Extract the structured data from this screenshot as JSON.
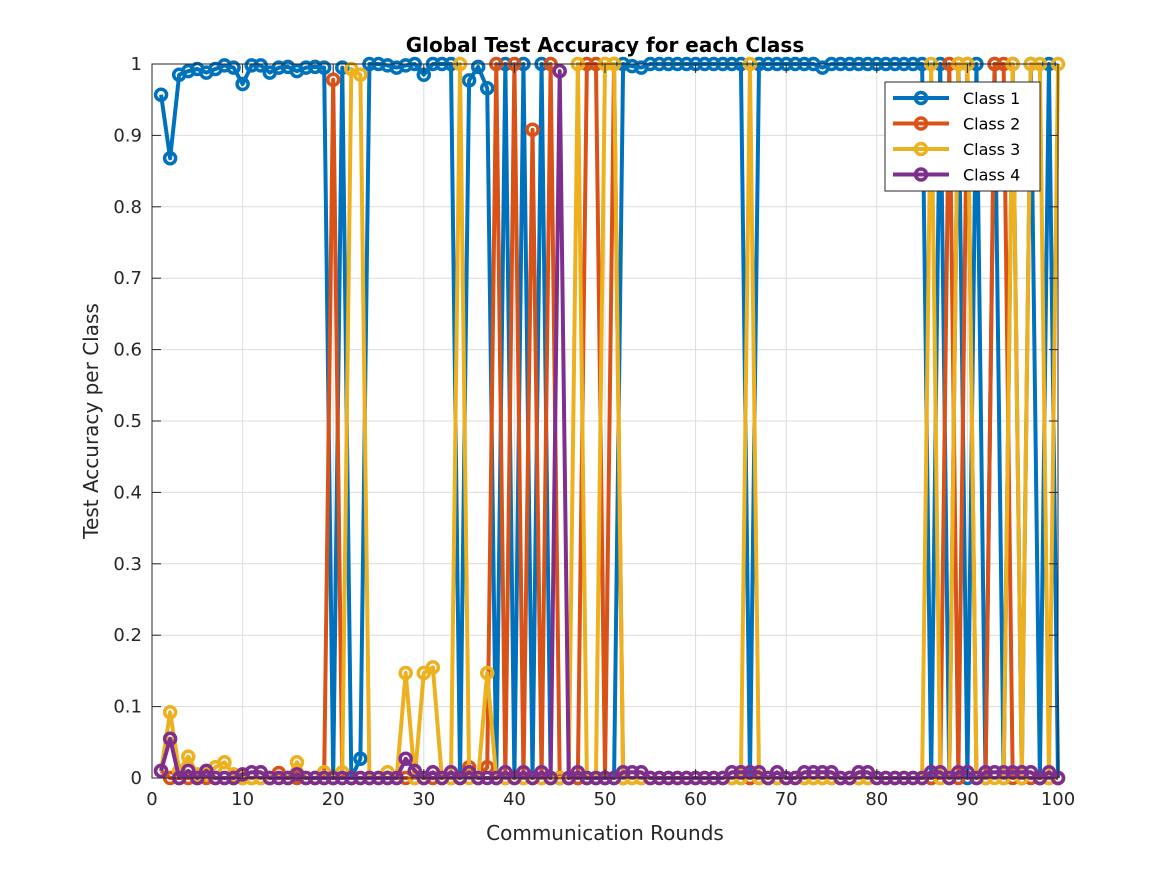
{
  "chart_data": {
    "type": "line",
    "title": "Global Test Accuracy for each Class",
    "xlabel": "Communication Rounds",
    "ylabel": "Test Accuracy per Class",
    "xlim": [
      0,
      100
    ],
    "ylim": [
      0,
      1
    ],
    "xticks": [
      0,
      10,
      20,
      30,
      40,
      50,
      60,
      70,
      80,
      90,
      100
    ],
    "yticks": [
      0,
      0.1,
      0.2,
      0.3,
      0.4,
      0.5,
      0.6,
      0.7,
      0.8,
      0.9,
      1
    ],
    "grid": true,
    "legend_position": "top-right",
    "x": [
      1,
      2,
      3,
      4,
      5,
      6,
      7,
      8,
      9,
      10,
      11,
      12,
      13,
      14,
      15,
      16,
      17,
      18,
      19,
      20,
      21,
      22,
      23,
      24,
      25,
      26,
      27,
      28,
      29,
      30,
      31,
      32,
      33,
      34,
      35,
      36,
      37,
      38,
      39,
      40,
      41,
      42,
      43,
      44,
      45,
      46,
      47,
      48,
      49,
      50,
      51,
      52,
      53,
      54,
      55,
      56,
      57,
      58,
      59,
      60,
      61,
      62,
      63,
      64,
      65,
      66,
      67,
      68,
      69,
      70,
      71,
      72,
      73,
      74,
      75,
      76,
      77,
      78,
      79,
      80,
      81,
      82,
      83,
      84,
      85,
      86,
      87,
      88,
      89,
      90,
      91,
      92,
      93,
      94,
      95,
      96,
      97,
      98,
      99,
      100
    ],
    "series": [
      {
        "name": "Class 1",
        "color": "#0072BD",
        "values": [
          0.957,
          0.868,
          0.985,
          0.99,
          0.993,
          0.988,
          0.993,
          0.998,
          0.995,
          0.972,
          0.998,
          0.998,
          0.988,
          0.995,
          0.996,
          0.99,
          0.995,
          0.996,
          0.995,
          0,
          0.995,
          0,
          0.027,
          1,
          1,
          0.998,
          0.995,
          0.998,
          1,
          0.985,
          1,
          1,
          1,
          0,
          0.977,
          0.996,
          0.966,
          0,
          1,
          0,
          1,
          0,
          1,
          0,
          0,
          0,
          0,
          0,
          0,
          0,
          0,
          1,
          0.997,
          0.995,
          1,
          1,
          1,
          1,
          1,
          1,
          1,
          1,
          1,
          1,
          1,
          0,
          1,
          1,
          1,
          1,
          1,
          1,
          1,
          0.995,
          1,
          1,
          1,
          1,
          1,
          1,
          1,
          1,
          1,
          1,
          1,
          0,
          1,
          0,
          1,
          0,
          1,
          0,
          1,
          0,
          1,
          0,
          1,
          0,
          1,
          0
        ]
      },
      {
        "name": "Class 2",
        "color": "#D95319",
        "values": [
          0.01,
          0,
          0,
          0,
          0,
          0,
          0,
          0,
          0,
          0,
          0,
          0,
          0,
          0.007,
          0,
          0,
          0,
          0,
          0,
          0.978,
          0,
          0,
          0,
          0,
          0,
          0,
          0,
          0,
          0,
          0,
          0,
          0,
          0,
          0,
          0.015,
          0,
          0.015,
          1,
          0,
          1,
          0,
          0.908,
          0,
          1,
          0,
          0,
          0,
          1,
          1,
          0,
          1,
          0,
          0,
          0,
          0,
          0,
          0,
          0,
          0,
          0,
          0,
          0,
          0,
          0,
          0,
          0,
          0,
          0,
          0,
          0,
          0,
          0,
          0,
          0,
          0,
          0,
          0,
          0,
          0,
          0,
          0,
          0,
          0,
          0,
          0,
          0,
          0,
          1,
          0,
          1,
          0,
          0,
          1,
          1,
          0,
          0,
          0,
          0,
          0,
          0
        ]
      },
      {
        "name": "Class 3",
        "color": "#EDB120",
        "values": [
          0.01,
          0.092,
          0.01,
          0.03,
          0.005,
          0.005,
          0.015,
          0.022,
          0.005,
          0,
          0,
          0,
          0,
          0,
          0,
          0.022,
          0,
          0,
          0.008,
          0,
          0.008,
          0.993,
          0.985,
          0,
          0,
          0.008,
          0,
          0.147,
          0,
          0.147,
          0.155,
          0,
          0,
          1,
          0,
          0,
          0.147,
          0,
          0,
          0,
          0,
          0,
          0,
          0,
          0,
          0,
          1,
          0,
          0,
          1,
          1,
          0,
          0,
          0,
          0,
          0,
          0,
          0,
          0,
          0,
          0,
          0,
          0,
          0,
          0,
          1,
          0,
          0,
          0,
          0,
          0,
          0,
          0,
          0,
          0,
          0,
          0,
          0,
          0,
          0,
          0,
          0,
          0,
          0,
          0,
          1,
          0,
          0,
          1,
          1,
          0,
          0,
          0,
          0,
          1,
          0,
          1,
          1,
          0,
          1
        ]
      },
      {
        "name": "Class 4",
        "color": "#7E2F8E",
        "values": [
          0.01,
          0.055,
          0,
          0.01,
          0,
          0.01,
          0,
          0,
          0,
          0.005,
          0.008,
          0.008,
          0,
          0,
          0,
          0.005,
          0,
          0,
          0,
          0,
          0,
          0,
          0,
          0,
          0,
          0,
          0,
          0.027,
          0.01,
          0,
          0.008,
          0,
          0.008,
          0,
          0.008,
          0,
          0,
          0,
          0.008,
          0,
          0.008,
          0,
          0.008,
          0,
          0.99,
          0,
          0.008,
          0,
          0,
          0,
          0,
          0.008,
          0.008,
          0.008,
          0,
          0,
          0,
          0,
          0,
          0,
          0,
          0,
          0,
          0.008,
          0.008,
          0.008,
          0.008,
          0,
          0.008,
          0,
          0,
          0.008,
          0.008,
          0.008,
          0.008,
          0,
          0,
          0.008,
          0.008,
          0,
          0,
          0,
          0,
          0,
          0,
          0.008,
          0.008,
          0,
          0.008,
          0.008,
          0,
          0.008,
          0.008,
          0.008,
          0.008,
          0.008,
          0.008,
          0,
          0.008,
          0
        ]
      }
    ]
  }
}
